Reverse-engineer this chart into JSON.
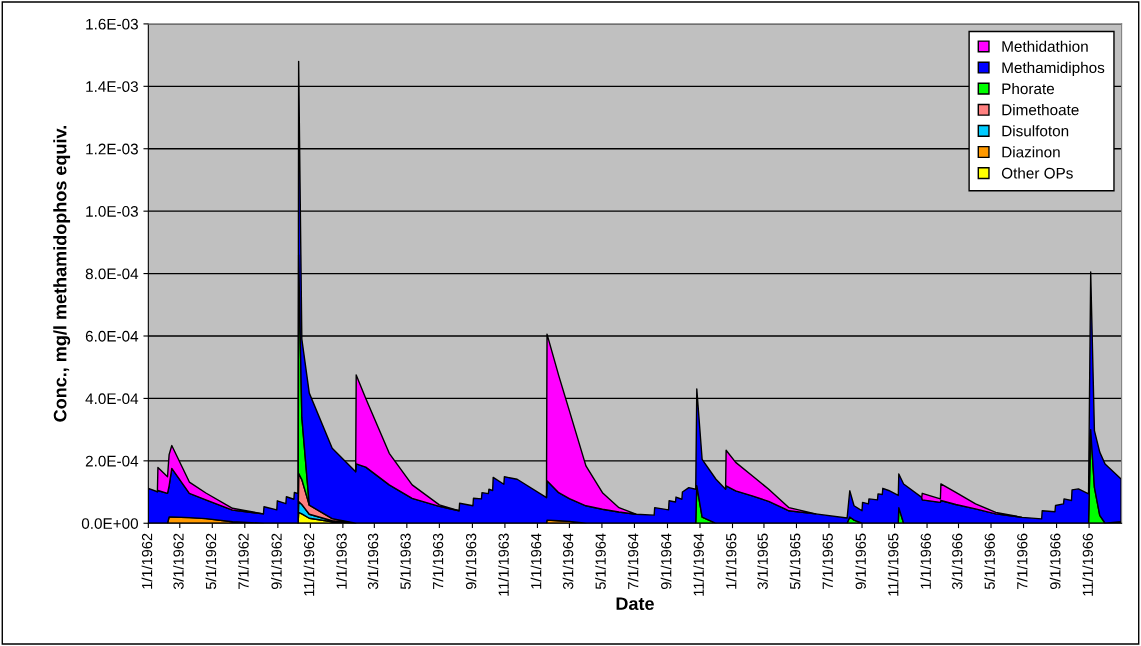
{
  "chart_data": {
    "type": "area",
    "stacked": true,
    "xlabel": "Date",
    "ylabel": "Conc., mg/l methamidophos equiv.",
    "xlim": [
      "1962-01-01",
      "1967-01-01"
    ],
    "xticks": [
      {
        "value": "1962-01-01",
        "label": "1/1/1962"
      },
      {
        "value": "1962-03-01",
        "label": "3/1/1962"
      },
      {
        "value": "1962-05-01",
        "label": "5/1/1962"
      },
      {
        "value": "1962-07-01",
        "label": "7/1/1962"
      },
      {
        "value": "1962-09-01",
        "label": "9/1/1962"
      },
      {
        "value": "1962-11-01",
        "label": "11/1/1962"
      },
      {
        "value": "1963-01-01",
        "label": "1/1/1963"
      },
      {
        "value": "1963-03-01",
        "label": "3/1/1963"
      },
      {
        "value": "1963-05-01",
        "label": "5/1/1963"
      },
      {
        "value": "1963-07-01",
        "label": "7/1/1963"
      },
      {
        "value": "1963-09-01",
        "label": "9/1/1963"
      },
      {
        "value": "1963-11-01",
        "label": "11/1/1963"
      },
      {
        "value": "1964-01-01",
        "label": "1/1/1964"
      },
      {
        "value": "1964-03-01",
        "label": "3/1/1964"
      },
      {
        "value": "1964-05-01",
        "label": "5/1/1964"
      },
      {
        "value": "1964-07-01",
        "label": "7/1/1964"
      },
      {
        "value": "1964-09-01",
        "label": "9/1/1964"
      },
      {
        "value": "1964-11-01",
        "label": "11/1/1964"
      },
      {
        "value": "1965-01-01",
        "label": "1/1/1965"
      },
      {
        "value": "1965-03-01",
        "label": "3/1/1965"
      },
      {
        "value": "1965-05-01",
        "label": "5/1/1965"
      },
      {
        "value": "1965-07-01",
        "label": "7/1/1965"
      },
      {
        "value": "1965-09-01",
        "label": "9/1/1965"
      },
      {
        "value": "1965-11-01",
        "label": "11/1/1965"
      },
      {
        "value": "1966-01-01",
        "label": "1/1/1966"
      },
      {
        "value": "1966-03-01",
        "label": "3/1/1966"
      },
      {
        "value": "1966-05-01",
        "label": "5/1/1966"
      },
      {
        "value": "1966-07-01",
        "label": "7/1/1966"
      },
      {
        "value": "1966-09-01",
        "label": "9/1/1966"
      },
      {
        "value": "1966-11-01",
        "label": "11/1/1966"
      }
    ],
    "ylim": [
      0,
      0.0016
    ],
    "yticks": [
      {
        "value": 0,
        "label": "0.0E+00"
      },
      {
        "value": 0.0002,
        "label": "2.0E-04"
      },
      {
        "value": 0.0004,
        "label": "4.0E-04"
      },
      {
        "value": 0.0006,
        "label": "6.0E-04"
      },
      {
        "value": 0.0008,
        "label": "8.0E-04"
      },
      {
        "value": 0.001,
        "label": "1.0E-03"
      },
      {
        "value": 0.0012,
        "label": "1.2E-03"
      },
      {
        "value": 0.0014,
        "label": "1.4E-03"
      },
      {
        "value": 0.0016,
        "label": "1.6E-03"
      }
    ],
    "grid": "y",
    "legend": "top right",
    "x": [
      "1962-01-01",
      "1962-01-18",
      "1962-01-19",
      "1962-02-06",
      "1962-02-09",
      "1962-02-14",
      "1962-03-19",
      "1962-04-19",
      "1962-06-08",
      "1962-08-05",
      "1962-08-06",
      "1962-08-30",
      "1962-08-31",
      "1962-09-16",
      "1962-09-17",
      "1962-10-01",
      "1962-10-02",
      "1962-10-09",
      "1962-10-10",
      "1962-10-16",
      "1962-10-30",
      "1962-12-12",
      "1963-01-25",
      "1963-01-26",
      "1963-02-13",
      "1963-03-29",
      "1963-05-11",
      "1963-07-01",
      "1963-08-07",
      "1963-08-08",
      "1963-09-02",
      "1963-09-03",
      "1963-09-18",
      "1963-09-19",
      "1963-10-01",
      "1963-10-02",
      "1963-10-09",
      "1963-10-10",
      "1963-10-30",
      "1963-10-31",
      "1963-11-24",
      "1964-01-18",
      "1964-01-19",
      "1964-02-10",
      "1964-03-01",
      "1964-04-01",
      "1964-05-02",
      "1964-06-02",
      "1964-07-04",
      "1964-08-07",
      "1964-08-08",
      "1964-09-03",
      "1964-09-04",
      "1964-09-16",
      "1964-09-17",
      "1964-09-28",
      "1964-09-29",
      "1964-10-11",
      "1964-10-24",
      "1964-10-26",
      "1964-11-05",
      "1964-12-01",
      "1964-12-19",
      "1964-12-20",
      "1965-01-07",
      "1965-02-07",
      "1965-03-10",
      "1965-04-17",
      "1965-06-06",
      "1965-08-04",
      "1965-08-09",
      "1965-08-17",
      "1965-09-01",
      "1965-09-02",
      "1965-09-13",
      "1965-09-14",
      "1965-09-30",
      "1965-10-01",
      "1965-10-09",
      "1965-10-10",
      "1965-10-21",
      "1965-11-08",
      "1965-11-09",
      "1965-11-18",
      "1965-12-22",
      "1965-12-23",
      "1966-01-26",
      "1966-01-27",
      "1966-02-24",
      "1966-04-02",
      "1966-05-10",
      "1966-06-28",
      "1966-08-04",
      "1966-08-05",
      "1966-08-29",
      "1966-08-30",
      "1966-09-14",
      "1966-09-15",
      "1966-09-29",
      "1966-09-30",
      "1966-10-12",
      "1966-10-31",
      "1966-11-04",
      "1966-11-11",
      "1966-11-21",
      "1966-12-01",
      "1966-12-31"
    ],
    "series": [
      {
        "name": "Other OPs",
        "color": "#ffff00",
        "values": [
          null,
          null,
          null,
          null,
          null,
          null,
          null,
          null,
          null,
          null,
          null,
          null,
          null,
          null,
          null,
          null,
          null,
          0,
          3.5e-05,
          3e-05,
          1.6e-05,
          5e-06,
          0,
          null,
          null,
          null,
          null,
          null,
          null,
          null,
          null,
          null,
          null,
          null,
          null,
          null,
          null,
          null,
          null,
          null,
          null,
          null,
          null,
          null,
          null,
          null,
          null,
          null,
          null,
          null,
          null,
          null,
          null,
          null,
          null,
          null,
          null,
          null,
          null,
          null,
          null,
          null,
          null,
          null,
          null,
          null,
          null,
          null,
          null,
          null,
          null,
          null,
          null,
          null,
          null,
          null,
          null,
          null,
          null,
          null,
          null,
          null,
          null,
          null,
          null,
          null,
          null,
          null,
          null,
          null,
          null,
          null,
          null,
          null,
          null,
          null,
          null,
          null,
          null,
          null,
          null,
          null,
          null,
          null,
          null,
          null,
          null
        ]
      },
      {
        "name": "Diazinon",
        "color": "#ff9900",
        "values": [
          null,
          null,
          null,
          0,
          2e-05,
          2e-05,
          1.8e-05,
          1.5e-05,
          5e-06,
          0,
          null,
          null,
          null,
          null,
          null,
          null,
          null,
          null,
          null,
          null,
          null,
          null,
          null,
          null,
          null,
          null,
          null,
          null,
          null,
          null,
          null,
          null,
          null,
          null,
          null,
          null,
          null,
          null,
          null,
          null,
          null,
          0,
          1e-05,
          8e-06,
          6e-06,
          0,
          null,
          null,
          null,
          null,
          null,
          null,
          null,
          null,
          null,
          null,
          null,
          null,
          null,
          null,
          null,
          null,
          null,
          null,
          null,
          null,
          null,
          null,
          null,
          null,
          null,
          null,
          null,
          null,
          null,
          null,
          null,
          null,
          null,
          null,
          null,
          null,
          null,
          null,
          null,
          null,
          null,
          null,
          null,
          null,
          null,
          null,
          null,
          null,
          null,
          null,
          null,
          null,
          null,
          null,
          null,
          null,
          null,
          null,
          null,
          null,
          null
        ]
      },
      {
        "name": "Disulfoton",
        "color": "#00ccff",
        "values": [
          null,
          null,
          null,
          null,
          null,
          null,
          null,
          null,
          null,
          null,
          null,
          null,
          null,
          null,
          null,
          null,
          null,
          0,
          3.5e-05,
          3e-05,
          1.3e-05,
          3e-06,
          0,
          null,
          null,
          null,
          null,
          null,
          null,
          null,
          null,
          null,
          null,
          null,
          null,
          null,
          null,
          null,
          null,
          null,
          null,
          null,
          null,
          null,
          null,
          null,
          null,
          null,
          null,
          null,
          null,
          null,
          null,
          null,
          null,
          null,
          null,
          null,
          null,
          null,
          null,
          null,
          null,
          null,
          null,
          null,
          null,
          null,
          null,
          null,
          null,
          null,
          null,
          null,
          null,
          null,
          null,
          null,
          null,
          null,
          null,
          null,
          null,
          null,
          null,
          null,
          null,
          null,
          null,
          null,
          null,
          null,
          null,
          null,
          null,
          null,
          null,
          null,
          null,
          null,
          null,
          null,
          null,
          null,
          null,
          0,
          5e-06
        ]
      },
      {
        "name": "Dimethoate",
        "color": "#ff8080",
        "values": [
          null,
          null,
          null,
          null,
          null,
          null,
          null,
          null,
          null,
          null,
          null,
          null,
          null,
          null,
          null,
          null,
          null,
          0,
          9e-05,
          8e-05,
          2.9e-05,
          7e-06,
          0,
          null,
          null,
          null,
          null,
          null,
          null,
          null,
          null,
          null,
          null,
          null,
          null,
          null,
          null,
          null,
          null,
          null,
          null,
          null,
          null,
          null,
          null,
          null,
          null,
          null,
          null,
          null,
          null,
          null,
          null,
          null,
          null,
          null,
          null,
          null,
          null,
          null,
          null,
          null,
          null,
          null,
          null,
          null,
          null,
          null,
          null,
          null,
          null,
          null,
          null,
          null,
          null,
          null,
          null,
          null,
          null,
          null,
          null,
          null,
          null,
          null,
          null,
          null,
          null,
          null,
          null,
          null,
          null,
          null,
          null,
          null,
          null,
          null,
          null,
          null,
          null,
          null,
          null,
          null,
          null,
          null,
          null,
          null,
          null
        ]
      },
      {
        "name": "Phorate",
        "color": "#00ff00",
        "values": [
          null,
          null,
          null,
          null,
          null,
          null,
          null,
          null,
          null,
          null,
          null,
          null,
          null,
          null,
          null,
          null,
          null,
          0,
          0.0007,
          0.0002,
          0,
          null,
          null,
          null,
          null,
          null,
          null,
          null,
          null,
          null,
          null,
          null,
          null,
          null,
          null,
          null,
          null,
          null,
          null,
          null,
          null,
          null,
          null,
          null,
          null,
          null,
          null,
          null,
          null,
          null,
          null,
          null,
          null,
          null,
          null,
          null,
          null,
          null,
          0,
          0.00012,
          2e-05,
          0,
          null,
          null,
          null,
          null,
          null,
          null,
          null,
          0,
          2e-05,
          1e-05,
          0,
          null,
          null,
          null,
          null,
          null,
          null,
          null,
          null,
          0,
          5e-05,
          0,
          null,
          null,
          null,
          null,
          null,
          null,
          null,
          null,
          null,
          null,
          null,
          null,
          null,
          null,
          null,
          null,
          null,
          0,
          0.0003,
          0.000115,
          2.5e-05,
          0,
          null
        ]
      },
      {
        "name": "Methamidiphos",
        "color": "#0000ff",
        "values": [
          0.000112,
          0.000101,
          0.000105,
          9.6e-05,
          0.0001,
          0.000156,
          7.8e-05,
          6e-05,
          3.7e-05,
          3e-05,
          5.3e-05,
          4.3e-05,
          7.2e-05,
          6.3e-05,
          8.5e-05,
          7.7e-05,
          9.9e-05,
          9.5e-05,
          0.00062,
          0.00025,
          0.000359,
          0.000225,
          0.000165,
          0.00019,
          0.00018,
          0.000123,
          8e-05,
          5.4e-05,
          4e-05,
          6.4e-05,
          5.6e-05,
          8e-05,
          7.8e-05,
          9.8e-05,
          9.5e-05,
          0.000109,
          0.000105,
          0.000147,
          0.000125,
          0.000149,
          0.000141,
          8.2e-05,
          0.000126,
          9e-05,
          7.3e-05,
          5.6e-05,
          4.5e-05,
          3.6e-05,
          2.9e-05,
          2.6e-05,
          5e-05,
          4.3e-05,
          7.2e-05,
          6.8e-05,
          8.4e-05,
          7.7e-05,
          0.0001,
          0.000114,
          0.000109,
          0.00031,
          0.000185,
          0.000141,
          0.000109,
          0.00012,
          0.000104,
          8.8e-05,
          7e-05,
          4e-05,
          3e-05,
          1.7e-05,
          8.4e-05,
          4.6e-05,
          4e-05,
          6.7e-05,
          6.2e-05,
          7.8e-05,
          7.5e-05,
          9.4e-05,
          9.2e-05,
          0.000112,
          0.000105,
          8.9e-05,
          0.000108,
          0.000126,
          8.3e-05,
          7.5e-05,
          6.7e-05,
          7.3e-05,
          6e-05,
          4.6e-05,
          3e-05,
          1.9e-05,
          1.4e-05,
          4e-05,
          3.7e-05,
          5.7e-05,
          6.2e-05,
          7.8e-05,
          7.3e-05,
          0.000107,
          0.00011,
          9.4e-05,
          0.000505,
          0.000182,
          0.000203,
          0.00019,
          0.000137
        ]
      },
      {
        "name": "Methidathion",
        "color": "#ff00ff",
        "values": [
          null,
          0,
          7.4e-05,
          5.3e-05,
          0.0001,
          7.3e-05,
          3.6e-05,
          2.2e-05,
          6e-06,
          0,
          null,
          null,
          null,
          null,
          null,
          null,
          null,
          null,
          null,
          null,
          null,
          null,
          0,
          0.000285,
          0.00022,
          0.000101,
          4.3e-05,
          5e-06,
          0,
          null,
          null,
          null,
          null,
          null,
          null,
          null,
          null,
          null,
          null,
          null,
          null,
          0,
          0.00047,
          0.000375,
          0.000281,
          0.000128,
          5.3e-05,
          1.4e-05,
          0,
          null,
          null,
          null,
          null,
          null,
          null,
          null,
          null,
          null,
          null,
          null,
          null,
          null,
          0,
          0.000114,
          9.1e-05,
          6.4e-05,
          3.9e-05,
          1e-05,
          0,
          null,
          null,
          null,
          null,
          null,
          null,
          null,
          null,
          null,
          null,
          null,
          null,
          null,
          null,
          null,
          0,
          2.1e-05,
          1.1e-05,
          5.3e-05,
          3.9e-05,
          1.6e-05,
          5e-06,
          0,
          null,
          null,
          null,
          null,
          null,
          null,
          null,
          null,
          null,
          null,
          null,
          null,
          null,
          null,
          null
        ]
      }
    ]
  }
}
